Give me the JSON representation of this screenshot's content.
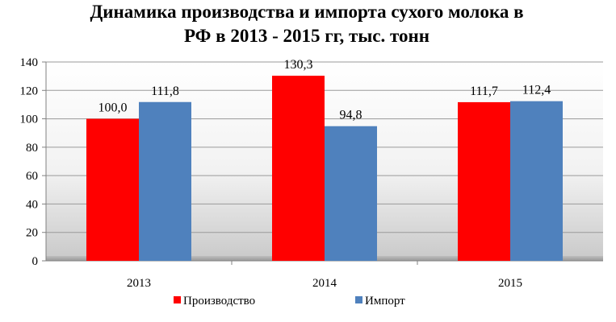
{
  "chart_data": {
    "type": "bar",
    "title_lines": [
      "Динамика производства и импорта сухого молока в",
      "РФ в 2013 - 2015 гг, тыс. тонн"
    ],
    "categories": [
      "2013",
      "2014",
      "2015"
    ],
    "series": [
      {
        "name": "Производство",
        "values": [
          100.0,
          130.3,
          111.7
        ],
        "labels": [
          "100,0",
          "130,3",
          "111,7"
        ],
        "color": "#ff0000"
      },
      {
        "name": "Импорт",
        "values": [
          111.8,
          94.8,
          112.4
        ],
        "labels": [
          "111,8",
          "94,8",
          "112,4"
        ],
        "color": "#4f81bd"
      }
    ],
    "ylim": [
      0,
      140
    ],
    "yticks": [
      "0",
      "20",
      "40",
      "60",
      "80",
      "100",
      "120",
      "140"
    ],
    "legend_position": "bottom",
    "plot_background": "gradient-gray"
  }
}
